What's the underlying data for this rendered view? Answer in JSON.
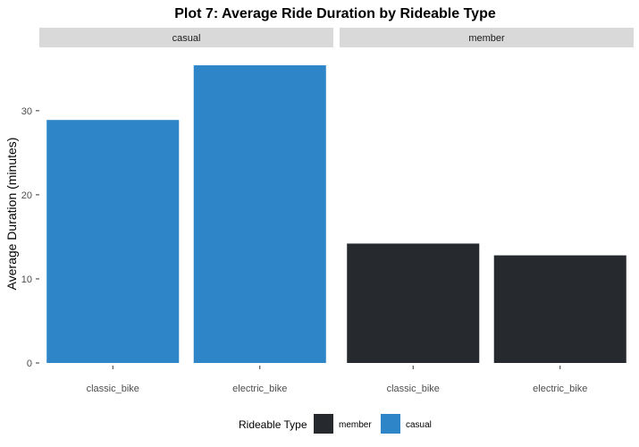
{
  "chart_data": {
    "type": "bar",
    "title": "Plot 7: Average Ride Duration by Rideable Type",
    "xlabel": "",
    "ylabel": "Average Duration (minutes)",
    "ylim": [
      0,
      37
    ],
    "yticks": [
      "0",
      "10",
      "20",
      "30"
    ],
    "categories": [
      "classic_bike",
      "electric_bike"
    ],
    "panels": [
      {
        "label": "casual",
        "series": "casual",
        "values": [
          28.9,
          35.4
        ]
      },
      {
        "label": "member",
        "series": "member",
        "values": [
          14.2,
          12.8
        ]
      }
    ],
    "series": [
      {
        "name": "member",
        "color": "#262a2e"
      },
      {
        "name": "casual",
        "color": "#2e86c9"
      }
    ],
    "legend": {
      "title": "Rideable Type",
      "position": "bottom"
    },
    "grid": false
  }
}
